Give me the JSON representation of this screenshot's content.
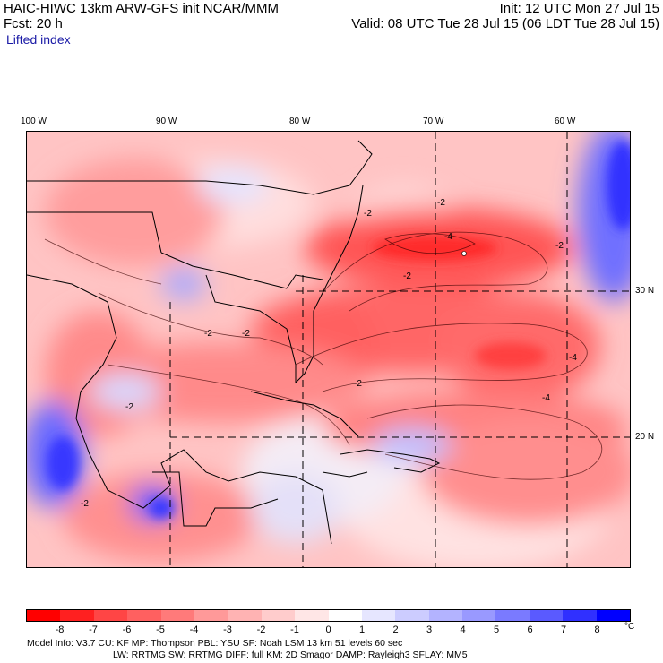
{
  "header": {
    "title": "HAIC-HIWC 13km ARW-GFS init   NCAR/MMM",
    "init": "Init: 12 UTC Mon 27 Jul 15",
    "fcst": "Fcst:   20 h",
    "valid": "Valid: 08 UTC Tue 28 Jul 15 (06 LDT Tue 28 Jul 15)",
    "field": "Lifted index"
  },
  "map": {
    "lon_labels": [
      "100 W",
      "90 W",
      "80 W",
      "70 W",
      "60 W"
    ],
    "lat_labels": [
      "30 N",
      "20 N"
    ],
    "contour_labels": [
      "-2",
      "-2",
      "-2",
      "-4",
      "-2",
      "-2",
      "-2",
      "-2",
      "-4",
      "-2",
      "-4",
      "-2"
    ]
  },
  "colorbar": {
    "ticks": [
      "-8",
      "-7",
      "-6",
      "-5",
      "-4",
      "-3",
      "-2",
      "-1",
      "0",
      "1",
      "2",
      "3",
      "4",
      "5",
      "6",
      "7",
      "8"
    ],
    "unit": "°C",
    "colors": [
      "#ff0000",
      "#ff2020",
      "#ff4545",
      "#ff6060",
      "#ff7a7a",
      "#ff9999",
      "#ffb3b3",
      "#ffcccc",
      "#ffe6e6",
      "#ffffff",
      "#e6e6ff",
      "#ccccff",
      "#b3b3ff",
      "#9999ff",
      "#7a7aff",
      "#5a5aff",
      "#3030ff",
      "#0000ff"
    ]
  },
  "footer": {
    "line1": "Model Info: V3.7      CU: KF      MP: Thompson     PBL: YSU       SF: Noah LSM      13 km     51 levels    60 sec",
    "line2": "LW: RRTMG    SW: RRTMG   DIFF: full    KM: 2D Smagor DAMP: Rayleigh3   SFLAY: MM5"
  }
}
